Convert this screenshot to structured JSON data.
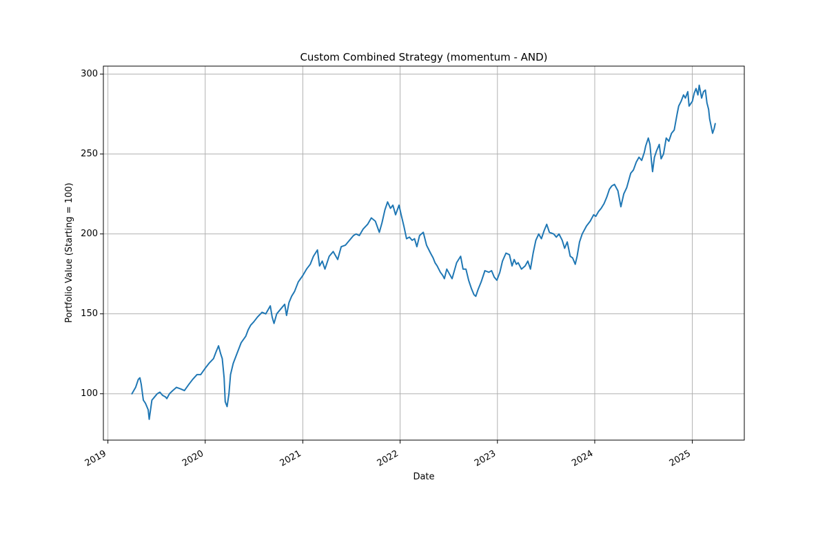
{
  "chart_data": {
    "type": "line",
    "title": "Custom Combined Strategy (momentum - AND)",
    "xlabel": "Date",
    "ylabel": "Portfolio Value (Starting = 100)",
    "xlim": [
      "2018-12-15",
      "2025-07-15"
    ],
    "ylim": [
      71,
      305
    ],
    "grid": true,
    "x_ticks": [
      "2019-01-01",
      "2020-01-01",
      "2021-01-01",
      "2022-01-01",
      "2023-01-01",
      "2024-01-01",
      "2025-01-01"
    ],
    "x_tick_labels": [
      "2019",
      "2020",
      "2021",
      "2022",
      "2023",
      "2024",
      "2025"
    ],
    "y_ticks": [
      100,
      150,
      200,
      250,
      300
    ],
    "y_tick_labels": [
      "100",
      "150",
      "200",
      "250",
      "300"
    ],
    "series": [
      {
        "color": "#1f77b4",
        "x": [
          "2019-04-01",
          "2019-04-15",
          "2019-04-25",
          "2019-05-01",
          "2019-05-06",
          "2019-05-14",
          "2019-05-22",
          "2019-06-01",
          "2019-06-05",
          "2019-06-15",
          "2019-06-25",
          "2019-07-05",
          "2019-07-15",
          "2019-07-25",
          "2019-08-05",
          "2019-08-10",
          "2019-08-20",
          "2019-09-01",
          "2019-09-15",
          "2019-10-01",
          "2019-10-15",
          "2019-11-01",
          "2019-11-15",
          "2019-12-01",
          "2019-12-15",
          "2020-01-01",
          "2020-01-15",
          "2020-02-01",
          "2020-02-10",
          "2020-02-20",
          "2020-02-28",
          "2020-03-05",
          "2020-03-12",
          "2020-03-16",
          "2020-03-23",
          "2020-03-30",
          "2020-04-05",
          "2020-04-15",
          "2020-05-01",
          "2020-05-15",
          "2020-06-01",
          "2020-06-10",
          "2020-06-20",
          "2020-07-01",
          "2020-07-15",
          "2020-08-01",
          "2020-08-15",
          "2020-09-01",
          "2020-09-08",
          "2020-09-15",
          "2020-09-25",
          "2020-10-10",
          "2020-10-25",
          "2020-11-01",
          "2020-11-10",
          "2020-11-20",
          "2020-12-01",
          "2020-12-15",
          "2021-01-01",
          "2021-01-15",
          "2021-01-29",
          "2021-02-10",
          "2021-02-25",
          "2021-03-05",
          "2021-03-15",
          "2021-03-25",
          "2021-04-10",
          "2021-04-25",
          "2021-05-12",
          "2021-05-25",
          "2021-06-10",
          "2021-06-25",
          "2021-07-10",
          "2021-07-20",
          "2021-08-01",
          "2021-08-15",
          "2021-09-01",
          "2021-09-15",
          "2021-09-30",
          "2021-10-15",
          "2021-10-25",
          "2021-11-05",
          "2021-11-15",
          "2021-11-26",
          "2021-12-05",
          "2021-12-15",
          "2021-12-28",
          "2022-01-05",
          "2022-01-15",
          "2022-01-25",
          "2022-02-05",
          "2022-02-15",
          "2022-02-24",
          "2022-03-05",
          "2022-03-15",
          "2022-03-29",
          "2022-04-10",
          "2022-04-25",
          "2022-05-05",
          "2022-05-12",
          "2022-05-20",
          "2022-06-01",
          "2022-06-10",
          "2022-06-16",
          "2022-06-25",
          "2022-07-05",
          "2022-07-15",
          "2022-08-01",
          "2022-08-16",
          "2022-08-25",
          "2022-09-05",
          "2022-09-15",
          "2022-09-25",
          "2022-10-05",
          "2022-10-12",
          "2022-10-20",
          "2022-11-01",
          "2022-11-15",
          "2022-11-30",
          "2022-12-10",
          "2022-12-20",
          "2022-12-30",
          "2023-01-10",
          "2023-01-20",
          "2023-02-02",
          "2023-02-15",
          "2023-02-25",
          "2023-03-05",
          "2023-03-13",
          "2023-03-20",
          "2023-04-01",
          "2023-04-15",
          "2023-04-25",
          "2023-05-05",
          "2023-05-15",
          "2023-05-25",
          "2023-06-05",
          "2023-06-15",
          "2023-06-25",
          "2023-07-05",
          "2023-07-15",
          "2023-07-31",
          "2023-08-10",
          "2023-08-20",
          "2023-09-01",
          "2023-09-10",
          "2023-09-20",
          "2023-10-01",
          "2023-10-10",
          "2023-10-20",
          "2023-10-27",
          "2023-11-05",
          "2023-11-15",
          "2023-12-01",
          "2023-12-15",
          "2023-12-28",
          "2024-01-05",
          "2024-01-15",
          "2024-01-25",
          "2024-02-05",
          "2024-02-15",
          "2024-02-25",
          "2024-03-05",
          "2024-03-15",
          "2024-03-28",
          "2024-04-08",
          "2024-04-19",
          "2024-04-30",
          "2024-05-15",
          "2024-05-25",
          "2024-06-05",
          "2024-06-15",
          "2024-06-25",
          "2024-07-05",
          "2024-07-10",
          "2024-07-20",
          "2024-07-26",
          "2024-08-01",
          "2024-08-05",
          "2024-08-12",
          "2024-08-20",
          "2024-08-30",
          "2024-09-06",
          "2024-09-15",
          "2024-09-25",
          "2024-10-05",
          "2024-10-15",
          "2024-10-25",
          "2024-11-05",
          "2024-11-11",
          "2024-11-20",
          "2024-11-29",
          "2024-12-06",
          "2024-12-15",
          "2024-12-20",
          "2025-01-01",
          "2025-01-08",
          "2025-01-15",
          "2025-01-22",
          "2025-01-27",
          "2025-02-05",
          "2025-02-12",
          "2025-02-19",
          "2025-02-25",
          "2025-03-03",
          "2025-03-07",
          "2025-03-12",
          "2025-03-18",
          "2025-03-24",
          "2025-03-28"
        ],
        "y": [
          100,
          104,
          109,
          110,
          106,
          96,
          94,
          90,
          84,
          96,
          98,
          100,
          101,
          99,
          98,
          97,
          100,
          102,
          104,
          103,
          102,
          106,
          109,
          112,
          112,
          116,
          119,
          122,
          126,
          130,
          125,
          122,
          110,
          95,
          92,
          100,
          112,
          119,
          126,
          132,
          136,
          140,
          143,
          145,
          148,
          151,
          150,
          155,
          148,
          144,
          150,
          153,
          156,
          149,
          157,
          161,
          164,
          170,
          174,
          178,
          181,
          186,
          190,
          180,
          183,
          178,
          186,
          189,
          184,
          192,
          193,
          196,
          199,
          200,
          199,
          203,
          206,
          210,
          208,
          201,
          207,
          215,
          220,
          216,
          218,
          212,
          218,
          212,
          205,
          197,
          198,
          196,
          197,
          192,
          199,
          201,
          193,
          188,
          185,
          182,
          180,
          176,
          174,
          172,
          178,
          175,
          172,
          182,
          186,
          178,
          178,
          171,
          166,
          162,
          161,
          165,
          170,
          177,
          176,
          177,
          173,
          171,
          176,
          183,
          188,
          187,
          180,
          184,
          181,
          182,
          178,
          180,
          183,
          178,
          188,
          196,
          200,
          197,
          202,
          206,
          201,
          200,
          198,
          200,
          196,
          191,
          195,
          186,
          185,
          181,
          186,
          195,
          200,
          205,
          208,
          212,
          211,
          214,
          216,
          219,
          223,
          228,
          230,
          231,
          227,
          217,
          225,
          229,
          238,
          240,
          245,
          248,
          246,
          251,
          255,
          260,
          256,
          245,
          239,
          248,
          252,
          256,
          247,
          250,
          260,
          258,
          263,
          265,
          275,
          280,
          283,
          287,
          285,
          289,
          280,
          283,
          288,
          291,
          287,
          293,
          285,
          289,
          290,
          282,
          278,
          272,
          268,
          263,
          266,
          269
        ]
      }
    ]
  }
}
